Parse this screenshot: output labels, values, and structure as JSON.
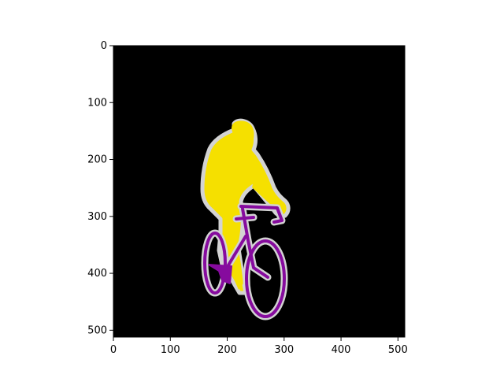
{
  "figure": {
    "description_free": true,
    "image": {
      "width": 512,
      "height": 512,
      "colors": {
        "background": "#000000",
        "person": "#f5e000",
        "bicycle": "#860b9e",
        "boundary": "#d3d3d3"
      }
    },
    "axes": {
      "x_ticks": [
        "0",
        "100",
        "200",
        "300",
        "400",
        "500"
      ],
      "y_ticks": [
        "0",
        "100",
        "200",
        "300",
        "400",
        "500"
      ],
      "x_tick_values": [
        0,
        100,
        200,
        300,
        400,
        500
      ],
      "y_tick_values": [
        0,
        100,
        200,
        300,
        400,
        500
      ],
      "xlim": [
        0,
        512
      ],
      "ylim": [
        512,
        0
      ]
    }
  }
}
